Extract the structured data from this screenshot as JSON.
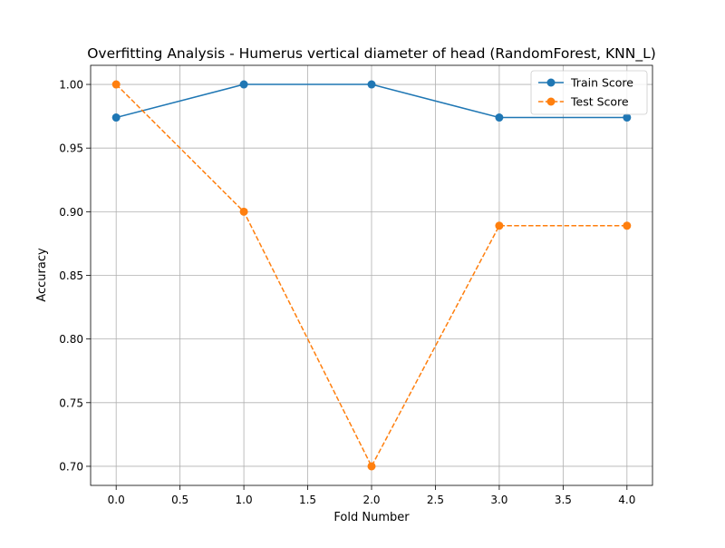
{
  "chart_data": {
    "type": "line",
    "title": "Overfitting Analysis - Humerus vertical diameter of head (RandomForest, KNN_L)",
    "xlabel": "Fold Number",
    "ylabel": "Accuracy",
    "xlim": [
      -0.2,
      4.2
    ],
    "ylim": [
      0.685,
      1.015
    ],
    "xticks": [
      0.0,
      0.5,
      1.0,
      1.5,
      2.0,
      2.5,
      3.0,
      3.5,
      4.0
    ],
    "xtick_labels": [
      "0.0",
      "0.5",
      "1.0",
      "1.5",
      "2.0",
      "2.5",
      "3.0",
      "3.5",
      "4.0"
    ],
    "yticks": [
      0.7,
      0.75,
      0.8,
      0.85,
      0.9,
      0.95,
      1.0
    ],
    "ytick_labels": [
      "0.70",
      "0.75",
      "0.80",
      "0.85",
      "0.90",
      "0.95",
      "1.00"
    ],
    "grid": true,
    "legend_position": "top-right",
    "x": [
      0,
      1,
      2,
      3,
      4
    ],
    "series": [
      {
        "name": "Train Score",
        "values": [
          0.974,
          1.0,
          1.0,
          0.974,
          0.974
        ],
        "color": "#1f77b4",
        "line_style": "solid",
        "marker": "circle"
      },
      {
        "name": "Test Score",
        "values": [
          1.0,
          0.9,
          0.7,
          0.889,
          0.889
        ],
        "color": "#ff7f0e",
        "line_style": "dashed",
        "marker": "circle"
      }
    ]
  }
}
